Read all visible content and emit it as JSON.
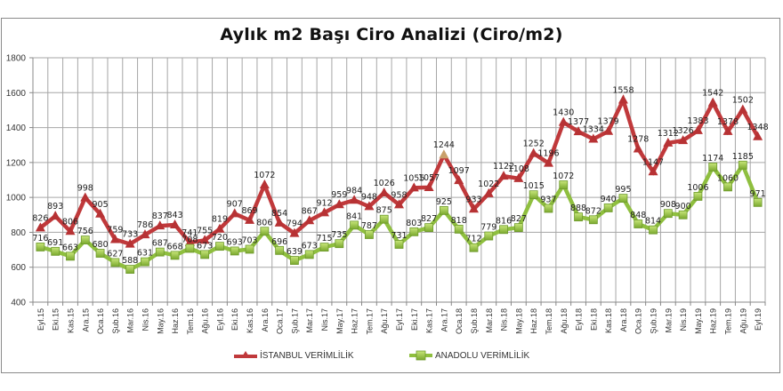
{
  "chart_data": {
    "type": "line",
    "title": "Aylık m2 Başı Ciro Analizi (Ciro/m2)",
    "xlabel": "",
    "ylabel": "",
    "ylim": [
      400,
      1800
    ],
    "yticks": [
      400,
      600,
      800,
      1000,
      1200,
      1400,
      1600,
      1800
    ],
    "grid": true,
    "legend_position": "bottom",
    "categories": [
      "Eyl.15",
      "Eki.15",
      "Kas.15",
      "Ara.15",
      "Oca.16",
      "Şub.16",
      "Mar.16",
      "Nis.16",
      "May.16",
      "Haz.16",
      "Tem.16",
      "Ağu.16",
      "Eyl.16",
      "Eki.16",
      "Kas.16",
      "Ara.16",
      "Oca.17",
      "Şub.17",
      "Mar.17",
      "Nis.17",
      "May.17",
      "Haz.17",
      "Tem.17",
      "Ağu.17",
      "Eyl.17",
      "Eki.17",
      "Kas.17",
      "Ara.17",
      "Oca.18",
      "Şub.18",
      "Mar.18",
      "Nis.18",
      "May.18",
      "Haz.18",
      "Tem.18",
      "Ağu.18",
      "Eyl.18",
      "Eki.18",
      "Kas.18",
      "Ara.18",
      "Oca.19",
      "Şub.19",
      "Mar.19",
      "Nis.19",
      "May.19",
      "Haz.19",
      "Tem.19",
      "Ağu.19",
      "Eyl.19"
    ],
    "series": [
      {
        "name": "İSTANBUL VERİMLİLİK",
        "color": "#c0393b",
        "marker": "triangle",
        "values": [
          826,
          893,
          806,
          998,
          905,
          759,
          733,
          786,
          837,
          843,
          741,
          755,
          819,
          907,
          869,
          1072,
          854,
          794,
          867,
          912,
          959,
          984,
          948,
          1026,
          958,
          1055,
          1057,
          1244,
          1097,
          933,
          1022,
          1122,
          1108,
          1252,
          1196,
          1430,
          1377,
          1334,
          1379,
          1558,
          1278,
          1147,
          1312,
          1326,
          1383,
          1542,
          1378,
          1502,
          1348
        ]
      },
      {
        "name": "ANADOLU VERİMLİLİK",
        "color": "#8fbf3f",
        "marker": "square",
        "values": [
          716,
          691,
          663,
          756,
          680,
          627,
          588,
          631,
          687,
          668,
          708,
          673,
          720,
          693,
          703,
          806,
          696,
          639,
          673,
          715,
          735,
          841,
          787,
          875,
          731,
          803,
          827,
          925,
          818,
          712,
          779,
          816,
          827,
          1015,
          937,
          1072,
          888,
          872,
          940,
          995,
          848,
          814,
          908,
          900,
          1006,
          1174,
          1060,
          1185,
          971
        ]
      }
    ]
  },
  "legend": {
    "istanbul_label": "İSTANBUL VERİMLİLİK",
    "anadolu_label": "ANADOLU VERİMLİLİK"
  }
}
